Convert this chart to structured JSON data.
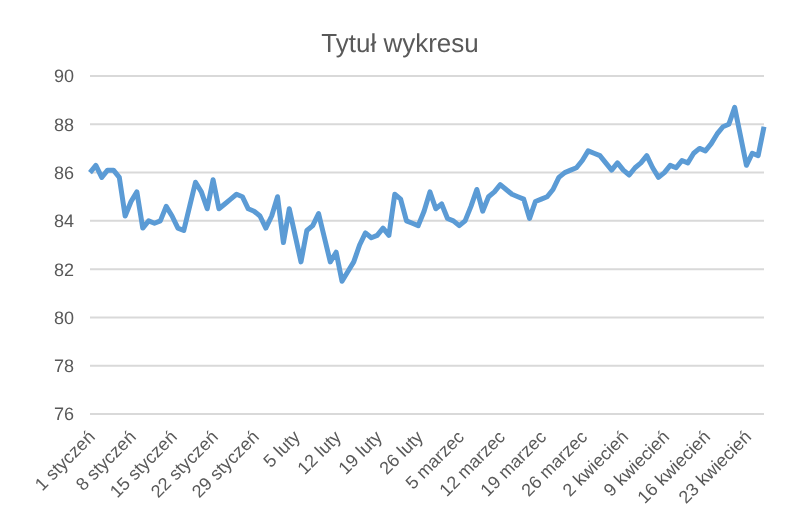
{
  "chart_data": {
    "type": "line",
    "title": "Tytuł wykresu",
    "categories": [
      "1 styczeń",
      null,
      null,
      null,
      null,
      null,
      null,
      "8 styczeń",
      null,
      null,
      null,
      null,
      null,
      null,
      "15 styczeń",
      null,
      null,
      null,
      null,
      null,
      null,
      "22 styczeń",
      null,
      null,
      null,
      null,
      null,
      null,
      "29 styczeń",
      null,
      null,
      null,
      null,
      null,
      null,
      "5 luty",
      null,
      null,
      null,
      null,
      null,
      null,
      "12 luty",
      null,
      null,
      null,
      null,
      null,
      null,
      "19 luty",
      null,
      null,
      null,
      null,
      null,
      null,
      "26 luty",
      null,
      null,
      null,
      null,
      null,
      null,
      "5 marzec",
      null,
      null,
      null,
      null,
      null,
      null,
      "12 marzec",
      null,
      null,
      null,
      null,
      null,
      null,
      "19 marzec",
      null,
      null,
      null,
      null,
      null,
      null,
      "26 marzec",
      null,
      null,
      null,
      null,
      null,
      null,
      "2 kwiecień",
      null,
      null,
      null,
      null,
      null,
      null,
      "9 kwiecień",
      null,
      null,
      null,
      null,
      null,
      null,
      "16 kwiecień",
      null,
      null,
      null,
      null,
      null,
      null,
      "23 kwiecień",
      null,
      null,
      null
    ],
    "series": [
      {
        "color": "#5b9bd5",
        "values": [
          86.0,
          86.3,
          85.8,
          86.1,
          86.1,
          85.8,
          84.2,
          84.8,
          85.2,
          83.7,
          84.0,
          83.9,
          84.0,
          84.6,
          84.2,
          83.7,
          83.6,
          84.6,
          85.6,
          85.2,
          84.5,
          85.7,
          84.5,
          84.7,
          84.9,
          85.1,
          85.0,
          84.5,
          84.4,
          84.2,
          83.7,
          84.2,
          85.0,
          83.1,
          84.5,
          83.4,
          82.3,
          83.6,
          83.8,
          84.3,
          83.3,
          82.3,
          82.7,
          81.5,
          81.9,
          82.3,
          83.0,
          83.5,
          83.3,
          83.4,
          83.7,
          83.4,
          85.1,
          84.9,
          84.0,
          83.9,
          83.8,
          84.4,
          85.2,
          84.5,
          84.7,
          84.1,
          84.0,
          83.8,
          84.0,
          84.6,
          85.3,
          84.4,
          85.0,
          85.2,
          85.5,
          85.3,
          85.1,
          85.0,
          84.9,
          84.1,
          84.8,
          84.9,
          85.0,
          85.3,
          85.8,
          86.0,
          86.1,
          86.2,
          86.5,
          86.9,
          86.8,
          86.7,
          86.4,
          86.1,
          86.4,
          86.1,
          85.9,
          86.2,
          86.4,
          86.7,
          86.2,
          85.8,
          86.0,
          86.3,
          86.2,
          86.5,
          86.4,
          86.8,
          87.0,
          86.9,
          87.2,
          87.6,
          87.9,
          88.0,
          88.7,
          87.5,
          86.3,
          86.8,
          86.7,
          87.9
        ]
      }
    ],
    "ylim": [
      76,
      90
    ],
    "yticks": [
      76,
      78,
      80,
      82,
      84,
      86,
      88,
      90
    ],
    "grid": "y",
    "legend": false,
    "marker": "none",
    "line_style": "solid"
  }
}
